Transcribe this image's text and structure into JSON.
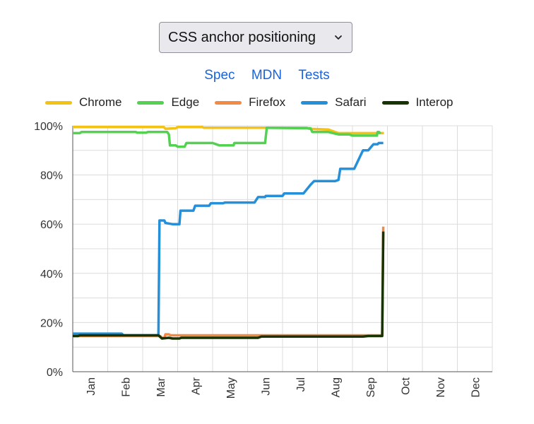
{
  "selector": {
    "value": "CSS anchor positioning"
  },
  "links": [
    {
      "label": "Spec"
    },
    {
      "label": "MDN"
    },
    {
      "label": "Tests"
    }
  ],
  "colors": {
    "Chrome": "#f2c214",
    "Edge": "#55d152",
    "Firefox": "#f28a44",
    "Safari": "#2590d9",
    "Interop": "#163300",
    "link": "#1a63d8",
    "grid": "#dcdcdc",
    "axis": "#555555"
  },
  "chart_data": {
    "type": "line",
    "ylim": [
      0,
      100
    ],
    "xlim": [
      0,
      12
    ],
    "y_ticks": [
      "0%",
      "20%",
      "40%",
      "60%",
      "80%",
      "100%"
    ],
    "x_tick_labels": [
      "Jan",
      "Feb",
      "Mar",
      "Apr",
      "May",
      "Jun",
      "Jul",
      "Aug",
      "Sep",
      "Oct",
      "Nov",
      "Dec"
    ],
    "legend_position": "top",
    "grid": true,
    "series": [
      {
        "name": "Chrome",
        "points": [
          [
            0,
            99.5
          ],
          [
            2.6,
            99.5
          ],
          [
            2.65,
            98.8
          ],
          [
            2.95,
            99.0
          ],
          [
            3.0,
            99.5
          ],
          [
            3.7,
            99.5
          ],
          [
            3.75,
            99.2
          ],
          [
            6.7,
            99.2
          ],
          [
            6.75,
            98.8
          ],
          [
            7.3,
            98.5
          ],
          [
            7.6,
            97.0
          ],
          [
            8.7,
            97.0
          ],
          [
            8.9,
            97.0
          ]
        ]
      },
      {
        "name": "Edge",
        "points": [
          [
            0,
            97.0
          ],
          [
            0.2,
            97.0
          ],
          [
            0.25,
            97.5
          ],
          [
            1.8,
            97.5
          ],
          [
            1.85,
            97.2
          ],
          [
            2.1,
            97.2
          ],
          [
            2.15,
            97.5
          ],
          [
            2.7,
            97.5
          ],
          [
            2.75,
            96.5
          ],
          [
            2.78,
            92.0
          ],
          [
            2.95,
            92.0
          ],
          [
            3.0,
            91.5
          ],
          [
            3.2,
            91.5
          ],
          [
            3.25,
            93.0
          ],
          [
            4.0,
            93.0
          ],
          [
            4.2,
            92.0
          ],
          [
            4.6,
            92.0
          ],
          [
            4.62,
            93.0
          ],
          [
            5.5,
            93.0
          ],
          [
            5.55,
            99.2
          ],
          [
            6.8,
            99.0
          ],
          [
            6.85,
            97.5
          ],
          [
            7.3,
            97.5
          ],
          [
            7.6,
            96.5
          ],
          [
            7.9,
            96.5
          ],
          [
            8.0,
            96.0
          ],
          [
            8.7,
            96.0
          ],
          [
            8.72,
            97.5
          ],
          [
            8.76,
            97.5
          ],
          [
            8.8,
            96.8
          ]
        ]
      },
      {
        "name": "Firefox",
        "points": [
          [
            0,
            14.5
          ],
          [
            2.5,
            14.5
          ],
          [
            2.55,
            13.8
          ],
          [
            2.62,
            13.8
          ],
          [
            2.65,
            15.2
          ],
          [
            2.75,
            15.2
          ],
          [
            2.8,
            14.8
          ],
          [
            8.85,
            14.8
          ],
          [
            8.88,
            59.0
          ]
        ]
      },
      {
        "name": "Safari",
        "points": [
          [
            0,
            15.5
          ],
          [
            1.4,
            15.5
          ],
          [
            1.45,
            14.8
          ],
          [
            2.45,
            14.8
          ],
          [
            2.48,
            61.5
          ],
          [
            2.62,
            61.5
          ],
          [
            2.65,
            60.5
          ],
          [
            2.85,
            60.0
          ],
          [
            3.05,
            60.0
          ],
          [
            3.08,
            65.5
          ],
          [
            3.45,
            65.5
          ],
          [
            3.5,
            67.5
          ],
          [
            3.9,
            67.5
          ],
          [
            3.95,
            68.5
          ],
          [
            4.3,
            68.5
          ],
          [
            4.35,
            68.8
          ],
          [
            5.2,
            68.8
          ],
          [
            5.3,
            71.0
          ],
          [
            5.5,
            71.0
          ],
          [
            5.52,
            71.5
          ],
          [
            6.0,
            71.5
          ],
          [
            6.05,
            72.5
          ],
          [
            6.6,
            72.5
          ],
          [
            6.8,
            76.0
          ],
          [
            6.9,
            77.5
          ],
          [
            7.5,
            77.5
          ],
          [
            7.6,
            78.0
          ],
          [
            7.65,
            82.5
          ],
          [
            8.05,
            82.5
          ],
          [
            8.2,
            87.0
          ],
          [
            8.3,
            90.0
          ],
          [
            8.45,
            90.0
          ],
          [
            8.6,
            92.5
          ],
          [
            8.72,
            92.5
          ],
          [
            8.75,
            93.0
          ],
          [
            8.88,
            93.0
          ]
        ]
      },
      {
        "name": "Interop",
        "points": [
          [
            0,
            14.5
          ],
          [
            0.15,
            14.5
          ],
          [
            0.2,
            14.8
          ],
          [
            2.45,
            14.8
          ],
          [
            2.55,
            13.5
          ],
          [
            2.75,
            13.8
          ],
          [
            2.85,
            13.5
          ],
          [
            3.05,
            13.5
          ],
          [
            3.1,
            13.8
          ],
          [
            5.3,
            13.8
          ],
          [
            5.4,
            14.3
          ],
          [
            8.3,
            14.3
          ],
          [
            8.45,
            14.5
          ],
          [
            8.85,
            14.5
          ],
          [
            8.88,
            57.0
          ]
        ]
      }
    ]
  }
}
